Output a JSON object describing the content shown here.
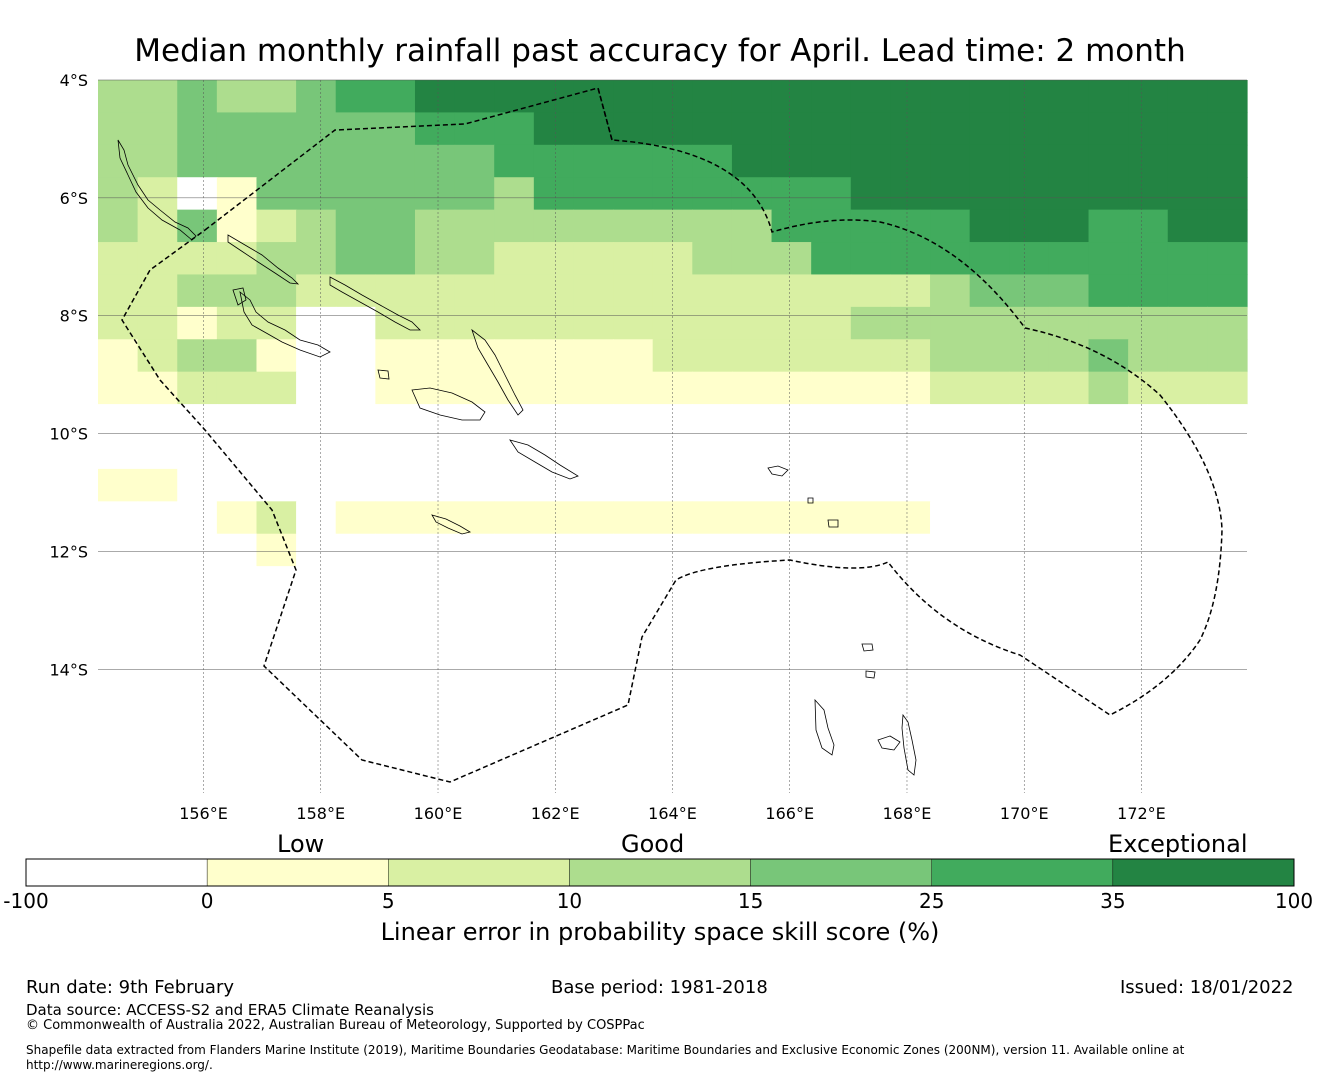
{
  "title": "Median monthly rainfall past accuracy for April. Lead time: 2 month",
  "map": {
    "lon_range": [
      154.2,
      173.8
    ],
    "lat_range": [
      -16.1,
      -4.0
    ],
    "lat_ticks": [
      {
        "value": -4,
        "label": "4°S"
      },
      {
        "value": -6,
        "label": "6°S"
      },
      {
        "value": -8,
        "label": "8°S"
      },
      {
        "value": -10,
        "label": "10°S"
      },
      {
        "value": -12,
        "label": "12°S"
      },
      {
        "value": -14,
        "label": "14°S"
      }
    ],
    "lon_ticks": [
      {
        "value": 156,
        "label": "156°E"
      },
      {
        "value": 158,
        "label": "158°E"
      },
      {
        "value": 160,
        "label": "160°E"
      },
      {
        "value": 162,
        "label": "162°E"
      },
      {
        "value": 164,
        "label": "164°E"
      },
      {
        "value": 166,
        "label": "166°E"
      },
      {
        "value": 168,
        "label": "168°E"
      },
      {
        "value": 170,
        "label": "170°E"
      },
      {
        "value": 172,
        "label": "172°E"
      }
    ],
    "grid_rows_note": "rows north to south, columns west to east; values are skill category index 0-6",
    "grid": [
      "33433455666666666666666666666",
      "33444444555666666666666666666",
      "33444444445555556666666666666",
      "32014444443555555556666666666",
      "32412344333333333555556665566",
      "22223344332222233355555555555",
      "22333222222222222222234445555",
      "22122002222222222223333333333",
      "12331001111111222222233334333",
      "11222001111111111111122223222",
      "00000000000000000000000000000",
      "00000000000000000000000000000",
      "11000000000000000000000000000",
      "00012011111111111111100000000",
      "00001000000000000000000000000",
      "00000000000000000000000000000",
      "00000000000000000000000000000",
      "00000000000000000000000000000",
      "00000000000000000000000000000",
      "00000000000000000000000000000",
      "00000000000000000000000000000",
      "00000000000000000000000000000"
    ]
  },
  "colorbar": {
    "colors": [
      "#ffffff",
      "#ffffcc",
      "#d9f0a3",
      "#addd8e",
      "#78c679",
      "#41ab5d",
      "#238443"
    ],
    "ticks": [
      "-100",
      "0",
      "5",
      "10",
      "15",
      "25",
      "35",
      "100"
    ],
    "category_labels": {
      "low": "Low",
      "good": "Good",
      "exceptional": "Exceptional"
    },
    "title": "Linear error in probability space skill score (%)"
  },
  "footer": {
    "run_date": "Run date: 9th February",
    "base_period": "Base period: 1981-2018",
    "issued": "Issued: 18/01/2022",
    "data_source": "Data source: ACCESS-S2 and ERA5 Climate Reanalysis",
    "copyright": "© Commonwealth of Australia 2022, Australian Bureau of Meteorology, Supported by COSPPac",
    "shapefile_line1": "Shapefile data extracted from Flanders Marine Institute (2019), Maritime Boundaries Geodatabase: Maritime Boundaries and Exclusive Economic Zones (200NM), version 11. Available online at",
    "shapefile_line2": "http://www.marineregions.org/."
  }
}
